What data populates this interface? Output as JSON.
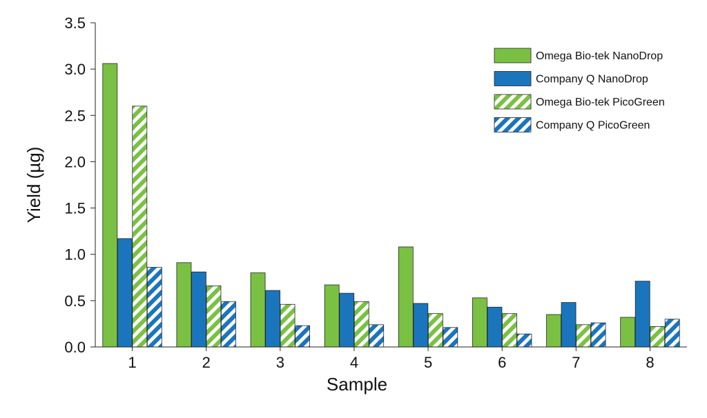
{
  "chart_data": {
    "type": "bar",
    "title": "",
    "xlabel": "Sample",
    "ylabel": "Yield (µg)",
    "ylim": [
      0,
      3.5
    ],
    "yticks": [
      "0.0",
      "0.5",
      "1.0",
      "1.5",
      "2.0",
      "2.5",
      "3.0",
      "3.5"
    ],
    "categories": [
      "1",
      "2",
      "3",
      "4",
      "5",
      "6",
      "7",
      "8"
    ],
    "legend_position": "top-right",
    "grid": false,
    "series": [
      {
        "name": "Omega Bio-tek NanoDrop",
        "pattern": "solid",
        "color": "#7ac143",
        "values": [
          3.06,
          0.91,
          0.8,
          0.67,
          1.08,
          0.53,
          0.35,
          0.32
        ]
      },
      {
        "name": "Company Q NanoDrop",
        "pattern": "solid",
        "color": "#1b75bc",
        "values": [
          1.17,
          0.81,
          0.61,
          0.58,
          0.47,
          0.43,
          0.48,
          0.71
        ]
      },
      {
        "name": "Omega Bio-tek PicoGreen",
        "pattern": "diagonal-stripes",
        "color": "#7ac143",
        "values": [
          2.6,
          0.66,
          0.46,
          0.49,
          0.36,
          0.36,
          0.24,
          0.22
        ]
      },
      {
        "name": "Company Q PicoGreen",
        "pattern": "diagonal-stripes",
        "color": "#1b75bc",
        "values": [
          0.86,
          0.49,
          0.23,
          0.24,
          0.21,
          0.14,
          0.26,
          0.3
        ]
      }
    ]
  }
}
